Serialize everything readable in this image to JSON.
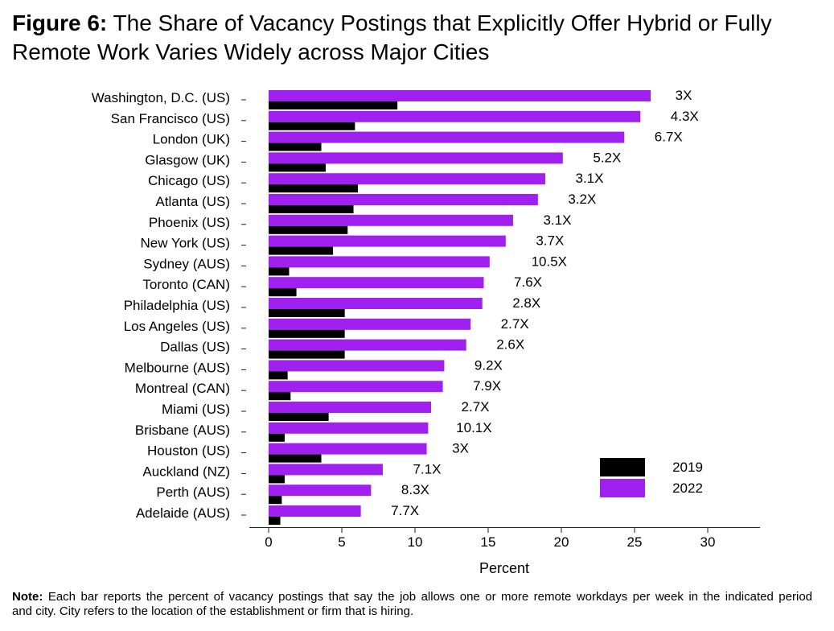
{
  "title": {
    "label": "Figure 6:",
    "line1": "The Share of Vacancy Postings that Explicitly Offer Hybrid or Fully",
    "line2": "Remote Work Varies Widely across Major Cities"
  },
  "note": {
    "label": "Note:",
    "line1": "Each bar reports the percent of vacancy postings that say the job allows one or more remote workdays per week in the indicated period",
    "line2": "and city. City refers to the location of the establishment or firm that is hiring."
  },
  "chart_data": {
    "type": "bar",
    "orientation": "horizontal",
    "title": "",
    "xlabel": "Percent",
    "ylabel": "",
    "xlim": [
      0,
      33.6
    ],
    "xticks": [
      0,
      5,
      10,
      15,
      20,
      25,
      30
    ],
    "grid": false,
    "categories": [
      "Washington, D.C. (US)",
      "San Francisco (US)",
      "London (UK)",
      "Glasgow (UK)",
      "Chicago (US)",
      "Atlanta (US)",
      "Phoenix (US)",
      "New York (US)",
      "Sydney (AUS)",
      "Toronto (CAN)",
      "Philadelphia (US)",
      "Los Angeles (US)",
      "Dallas (US)",
      "Melbourne (AUS)",
      "Montreal (CAN)",
      "Miami (US)",
      "Brisbane (AUS)",
      "Houston (US)",
      "Auckland (NZ)",
      "Perth (AUS)",
      "Adelaide (AUS)"
    ],
    "series": [
      {
        "name": "2019",
        "color": "#000000",
        "values": [
          8.8,
          5.9,
          3.6,
          3.9,
          6.1,
          5.8,
          5.4,
          4.4,
          1.4,
          1.9,
          5.2,
          5.2,
          5.2,
          1.3,
          1.5,
          4.1,
          1.1,
          3.6,
          1.1,
          0.9,
          0.8
        ]
      },
      {
        "name": "2022",
        "color": "#A020F0",
        "values": [
          26.1,
          25.4,
          24.3,
          20.1,
          18.9,
          18.4,
          16.7,
          16.2,
          15.1,
          14.7,
          14.6,
          13.8,
          13.5,
          12.0,
          11.9,
          11.1,
          10.9,
          10.8,
          7.8,
          7.0,
          6.3
        ]
      }
    ],
    "annotations": [
      "3X",
      "4.3X",
      "6.7X",
      "5.2X",
      "3.1X",
      "3.2X",
      "3.1X",
      "3.7X",
      "10.5X",
      "7.6X",
      "2.8X",
      "2.7X",
      "2.6X",
      "9.2X",
      "7.9X",
      "2.7X",
      "10.1X",
      "3X",
      "7.1X",
      "8.3X",
      "7.7X"
    ],
    "legend": {
      "position": "bottom-right"
    }
  }
}
